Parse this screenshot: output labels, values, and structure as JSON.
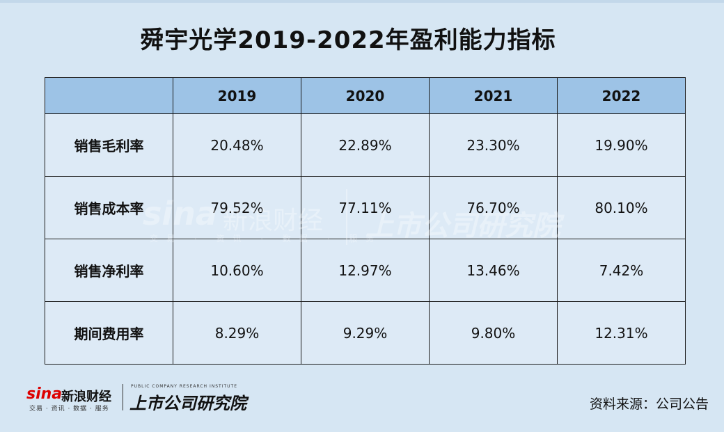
{
  "title": "舜宇光学2019-2022年盈利能力指标",
  "table": {
    "headers": [
      "",
      "2019",
      "2020",
      "2021",
      "2022"
    ],
    "rows": [
      {
        "label": "销售毛利率",
        "values": [
          "20.48%",
          "22.89%",
          "23.30%",
          "19.90%"
        ]
      },
      {
        "label": "销售成本率",
        "values": [
          "79.52%",
          "77.11%",
          "76.70%",
          "80.10%"
        ]
      },
      {
        "label": "销售净利率",
        "values": [
          "10.60%",
          "12.97%",
          "13.46%",
          "7.42%"
        ]
      },
      {
        "label": "期间费用率",
        "values": [
          "8.29%",
          "9.29%",
          "9.80%",
          "12.31%"
        ]
      }
    ]
  },
  "watermark": {
    "sina": "sina",
    "sina_cn": "新浪财经",
    "sina_sub": "交易 · 资讯 · 数据 · 服务",
    "institute_cn": "上市公司研究院"
  },
  "footer": {
    "sina": "sina",
    "sina_cn": "新浪财经",
    "sina_sub": "交易 · 资讯 · 数据 · 服务",
    "institute_en": "PUBLIC COMPANY RESEARCH INSTITUTE",
    "institute_cn": "上市公司研究院",
    "source": "资料来源：公司公告"
  },
  "colors": {
    "background": "#d6e6f3",
    "header_fill": "#9dc3e6",
    "cell_fill": "#ddeaf6",
    "sina_red": "#dd0000"
  }
}
